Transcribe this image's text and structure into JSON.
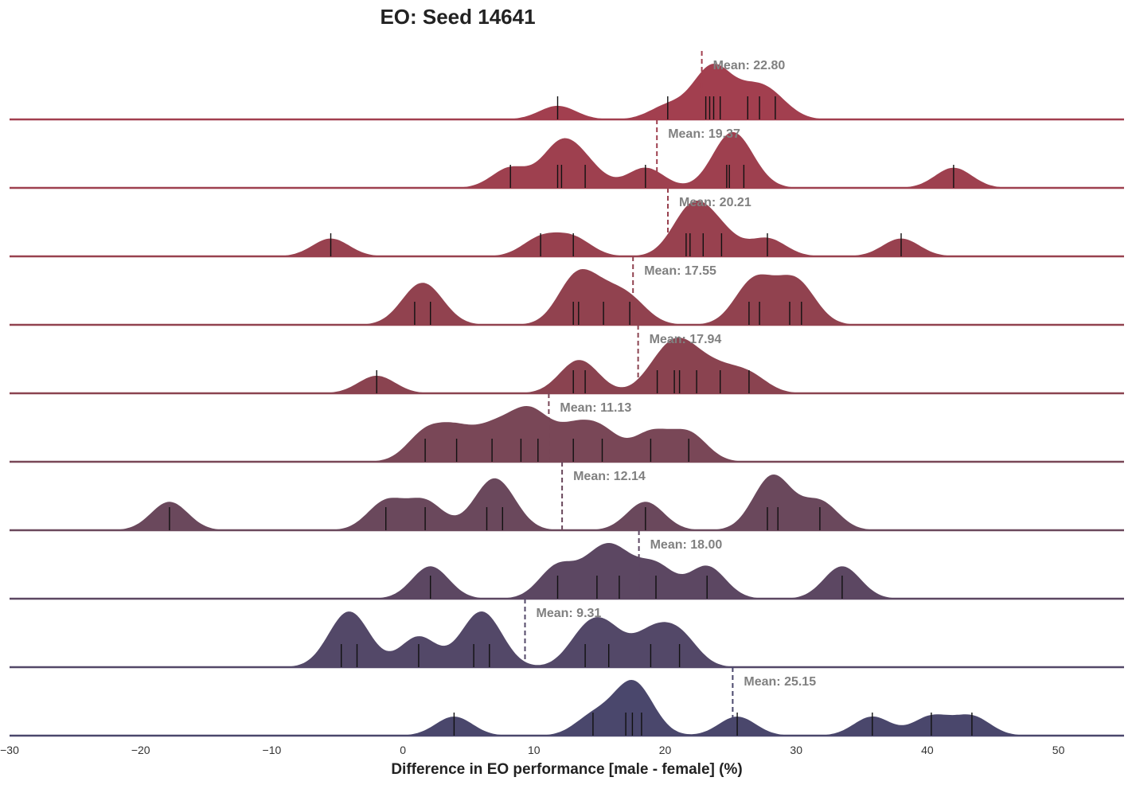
{
  "chart_data": {
    "type": "ridgeline",
    "title": "EO: Seed 14641",
    "xlabel": "Difference in EO performance [male - female] (%)",
    "xlim": [
      -30,
      55
    ],
    "x_ticks": [
      -30,
      -20,
      -10,
      0,
      10,
      20,
      30,
      40,
      50
    ],
    "x_tick_labels": [
      "−30",
      "−20",
      "−10",
      "0",
      "10",
      "20",
      "30",
      "40",
      "50"
    ],
    "mean_prefix": "Mean: ",
    "colors": [
      "#a23f4f",
      "#9e404f",
      "#98414f",
      "#91424f",
      "#8a4350",
      "#794757",
      "#6a485c",
      "#5c4762",
      "#534868",
      "#4a476c"
    ],
    "rows": [
      {
        "mean": 22.8,
        "mean_label": "22.80",
        "points": [
          11.8,
          20.2,
          23.1,
          23.4,
          23.7,
          24.2,
          26.3,
          27.2,
          28.4
        ]
      },
      {
        "mean": 19.37,
        "mean_label": "19.37",
        "points": [
          8.2,
          11.8,
          12.1,
          13.9,
          18.5,
          24.7,
          24.9,
          26.0,
          42.0
        ]
      },
      {
        "mean": 20.21,
        "mean_label": "20.21",
        "points": [
          -5.5,
          10.5,
          13.0,
          21.6,
          21.9,
          22.9,
          24.3,
          27.8,
          38.0
        ]
      },
      {
        "mean": 17.55,
        "mean_label": "17.55",
        "points": [
          0.9,
          2.1,
          13.0,
          13.4,
          15.3,
          17.3,
          26.4,
          27.2,
          29.5,
          30.4
        ]
      },
      {
        "mean": 17.94,
        "mean_label": "17.94",
        "points": [
          -2.0,
          13.0,
          13.9,
          19.4,
          20.7,
          21.1,
          22.4,
          24.2,
          26.4
        ]
      },
      {
        "mean": 11.13,
        "mean_label": "11.13",
        "points": [
          1.7,
          4.1,
          6.8,
          9.0,
          10.3,
          13.0,
          15.2,
          18.9,
          21.8
        ]
      },
      {
        "mean": 12.14,
        "mean_label": "12.14",
        "points": [
          -17.8,
          -1.3,
          1.7,
          6.4,
          7.6,
          18.5,
          27.8,
          28.6,
          31.8
        ]
      },
      {
        "mean": 18.0,
        "mean_label": "18.00",
        "points": [
          2.1,
          11.8,
          14.8,
          16.5,
          19.3,
          23.2,
          33.5
        ]
      },
      {
        "mean": 9.31,
        "mean_label": "9.31",
        "points": [
          -4.7,
          -3.5,
          1.2,
          5.4,
          6.6,
          13.9,
          15.7,
          18.9,
          21.1
        ]
      },
      {
        "mean": 25.15,
        "mean_label": "25.15",
        "points": [
          3.9,
          14.5,
          17.0,
          17.5,
          18.2,
          25.5,
          35.8,
          40.3,
          43.4
        ]
      }
    ]
  }
}
